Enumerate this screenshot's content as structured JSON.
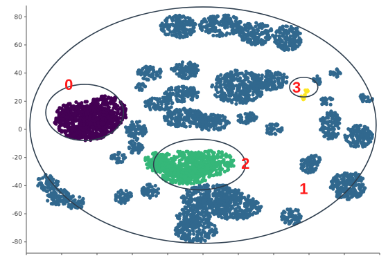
{
  "chart_data": {
    "type": "scatter",
    "title": "",
    "xlabel": "",
    "ylabel": "",
    "xlim": [
      -100,
      100
    ],
    "ylim": [
      -88,
      88
    ],
    "y_ticks": [
      {
        "value": 80,
        "label": "80"
      },
      {
        "value": 60,
        "label": "60"
      },
      {
        "value": 40,
        "label": "40"
      },
      {
        "value": 20,
        "label": "20"
      },
      {
        "value": 0,
        "label": "0"
      },
      {
        "value": -20,
        "label": "-20"
      },
      {
        "value": -40,
        "label": "-40"
      },
      {
        "value": -60,
        "label": "-60"
      },
      {
        "value": -80,
        "label": "-80"
      }
    ],
    "x_ticks_labeled": false,
    "grid": false,
    "legend": "none",
    "clusters": [
      {
        "id": "0",
        "label": "0",
        "color": "#440154",
        "regions": [
          {
            "cx": -66,
            "cy": 5,
            "rx": 18,
            "ry": 12
          },
          {
            "cx": -68,
            "cy": 10,
            "rx": 16,
            "ry": 10
          },
          {
            "cx": -55,
            "cy": 12,
            "rx": 12,
            "ry": 12
          },
          {
            "cx": -66,
            "cy": -3,
            "rx": 12,
            "ry": 5
          }
        ]
      },
      {
        "id": "1",
        "label": "1",
        "color": "#31688e",
        "regions": [
          {
            "cx": -14,
            "cy": 73,
            "rx": 10,
            "ry": 8
          },
          {
            "cx": 10,
            "cy": 74,
            "rx": 12,
            "ry": 8
          },
          {
            "cx": 30,
            "cy": 68,
            "rx": 10,
            "ry": 8
          },
          {
            "cx": 48,
            "cy": 65,
            "rx": 8,
            "ry": 9
          },
          {
            "cx": -30,
            "cy": 40,
            "rx": 7,
            "ry": 5
          },
          {
            "cx": -10,
            "cy": 42,
            "rx": 8,
            "ry": 6
          },
          {
            "cx": 20,
            "cy": 30,
            "rx": 15,
            "ry": 12
          },
          {
            "cx": 38,
            "cy": 35,
            "rx": 10,
            "ry": 7
          },
          {
            "cx": -12,
            "cy": 25,
            "rx": 10,
            "ry": 6
          },
          {
            "cx": -25,
            "cy": 18,
            "rx": 8,
            "ry": 5
          },
          {
            "cx": -10,
            "cy": 8,
            "rx": 12,
            "ry": 7
          },
          {
            "cx": 5,
            "cy": 5,
            "rx": 10,
            "ry": 6
          },
          {
            "cx": -38,
            "cy": 0,
            "rx": 6,
            "ry": 6
          },
          {
            "cx": -38,
            "cy": -12,
            "rx": 4,
            "ry": 6
          },
          {
            "cx": 72,
            "cy": 3,
            "rx": 6,
            "ry": 10
          },
          {
            "cx": 88,
            "cy": -5,
            "rx": 8,
            "ry": 8
          },
          {
            "cx": 60,
            "cy": -25,
            "rx": 5,
            "ry": 6
          },
          {
            "cx": 82,
            "cy": -40,
            "rx": 10,
            "ry": 10
          },
          {
            "cx": 5,
            "cy": -48,
            "rx": 18,
            "ry": 9
          },
          {
            "cx": 18,
            "cy": -55,
            "rx": 15,
            "ry": 9
          },
          {
            "cx": -5,
            "cy": -62,
            "rx": 10,
            "ry": 8
          },
          {
            "cx": -4,
            "cy": -72,
            "rx": 12,
            "ry": 8
          },
          {
            "cx": -88,
            "cy": -38,
            "rx": 6,
            "ry": 6
          },
          {
            "cx": -82,
            "cy": -48,
            "rx": 7,
            "ry": 6
          },
          {
            "cx": -72,
            "cy": -52,
            "rx": 5,
            "ry": 5
          },
          {
            "cx": -45,
            "cy": -48,
            "rx": 5,
            "ry": 5
          },
          {
            "cx": -30,
            "cy": -44,
            "rx": 5,
            "ry": 5
          },
          {
            "cx": -48,
            "cy": -20,
            "rx": 4,
            "ry": 4
          },
          {
            "cx": 25,
            "cy": 8,
            "rx": 6,
            "ry": 4
          },
          {
            "cx": 40,
            "cy": 0,
            "rx": 5,
            "ry": 4
          },
          {
            "cx": 63,
            "cy": -22,
            "rx": 4,
            "ry": 4
          },
          {
            "cx": 50,
            "cy": -62,
            "rx": 6,
            "ry": 6
          },
          {
            "cx": 65,
            "cy": 35,
            "rx": 3,
            "ry": 3
          },
          {
            "cx": 75,
            "cy": 40,
            "rx": 3,
            "ry": 3
          },
          {
            "cx": 70,
            "cy": 20,
            "rx": 4,
            "ry": 3
          },
          {
            "cx": 92,
            "cy": 22,
            "rx": 4,
            "ry": 3
          },
          {
            "cx": -35,
            "cy": 30,
            "rx": 3,
            "ry": 3
          }
        ]
      },
      {
        "id": "2",
        "label": "2",
        "color": "#35b779",
        "regions": [
          {
            "cx": -12,
            "cy": -25,
            "rx": 20,
            "ry": 10
          },
          {
            "cx": 4,
            "cy": -24,
            "rx": 14,
            "ry": 9
          },
          {
            "cx": -10,
            "cy": -33,
            "rx": 14,
            "ry": 6
          },
          {
            "cx": -25,
            "cy": -22,
            "rx": 8,
            "ry": 6
          }
        ]
      },
      {
        "id": "3",
        "label": "3",
        "color": "#fde725",
        "regions": [
          {
            "cx": 57,
            "cy": 23,
            "rx": 2,
            "ry": 2
          },
          {
            "cx": 59,
            "cy": 27,
            "rx": 1.5,
            "ry": 1.5
          }
        ]
      }
    ],
    "annotations": [
      {
        "label": "0",
        "x": -76,
        "y": 32,
        "color": "#ff1a1a"
      },
      {
        "label": "2",
        "x": 24,
        "y": -24,
        "color": "#ff1a1a"
      },
      {
        "label": "3",
        "x": 53,
        "y": 30,
        "color": "#ff1a1a"
      },
      {
        "label": "1",
        "x": 57,
        "y": -42,
        "color": "#ff1a1a"
      }
    ],
    "outline_ellipses": [
      {
        "label": "outer",
        "cx": 0,
        "cy": 3,
        "rx": 98,
        "ry": 84
      },
      {
        "label": "0",
        "cx": -67,
        "cy": 12,
        "rx": 22,
        "ry": 20
      },
      {
        "label": "2",
        "cx": -2,
        "cy": -25,
        "rx": 26,
        "ry": 18
      },
      {
        "label": "3",
        "cx": 57,
        "cy": 30,
        "rx": 8,
        "ry": 7
      }
    ],
    "outline_color": "#2f3f4f"
  }
}
